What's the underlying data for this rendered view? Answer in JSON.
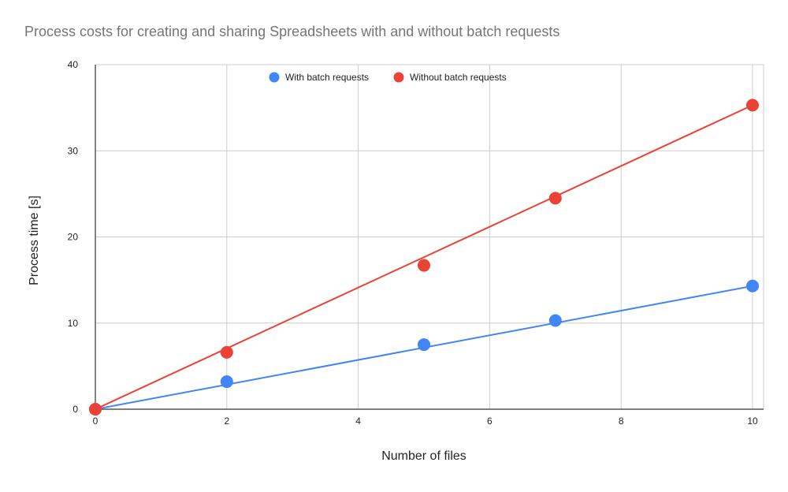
{
  "chart_data": {
    "type": "scatter",
    "title": "Process costs for creating and sharing Spreadsheets with and without batch requests",
    "xlabel": "Number of files",
    "ylabel": "Process time [s]",
    "xlim": [
      0,
      10
    ],
    "ylim": [
      0,
      40
    ],
    "x_ticks": [
      0,
      2,
      4,
      6,
      8,
      10
    ],
    "y_ticks": [
      0,
      10,
      20,
      30,
      40
    ],
    "grid": true,
    "legend_position": "top",
    "series": [
      {
        "name": "With batch requests",
        "color": "#4285f4",
        "points": [
          {
            "x": 0,
            "y": 0
          },
          {
            "x": 2,
            "y": 3.2
          },
          {
            "x": 5,
            "y": 7.5
          },
          {
            "x": 7,
            "y": 10.3
          },
          {
            "x": 10,
            "y": 14.3
          }
        ],
        "trendline": {
          "from": [
            0,
            0
          ],
          "to": [
            10,
            14.3
          ]
        }
      },
      {
        "name": "Without batch requests",
        "color": "#ea4335",
        "points": [
          {
            "x": 0,
            "y": 0
          },
          {
            "x": 2,
            "y": 6.6
          },
          {
            "x": 5,
            "y": 16.7
          },
          {
            "x": 7,
            "y": 24.5
          },
          {
            "x": 10,
            "y": 35.3
          }
        ],
        "trendline": {
          "from": [
            0,
            0
          ],
          "to": [
            10,
            35.3
          ]
        }
      }
    ]
  }
}
